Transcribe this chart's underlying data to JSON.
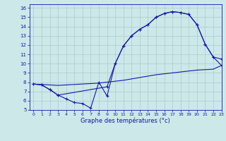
{
  "line1_x": [
    0,
    1,
    2,
    3,
    4,
    5,
    6,
    7,
    8,
    9,
    10,
    11,
    12,
    13,
    14,
    15,
    16,
    17,
    18,
    19,
    20,
    21,
    22,
    23
  ],
  "line1_y": [
    7.8,
    7.7,
    7.2,
    6.6,
    6.2,
    5.8,
    5.7,
    5.2,
    8.0,
    6.5,
    10.0,
    11.9,
    13.0,
    13.7,
    14.2,
    15.0,
    15.4,
    15.6,
    15.5,
    15.3,
    14.2,
    12.1,
    10.7,
    9.8
  ],
  "line2_x": [
    0,
    1,
    2,
    3,
    9,
    10,
    11,
    12,
    13,
    14,
    15,
    16,
    17,
    18,
    19,
    20,
    21,
    22,
    23
  ],
  "line2_y": [
    7.8,
    7.7,
    7.2,
    6.6,
    7.5,
    10.0,
    11.9,
    13.0,
    13.7,
    14.2,
    15.0,
    15.4,
    15.6,
    15.5,
    15.3,
    14.2,
    12.1,
    10.7,
    10.5
  ],
  "line3_x": [
    0,
    1,
    2,
    3,
    4,
    5,
    6,
    7,
    8,
    9,
    10,
    11,
    12,
    13,
    14,
    15,
    16,
    17,
    18,
    19,
    20,
    21,
    22,
    23
  ],
  "line3_y": [
    7.8,
    7.75,
    7.7,
    7.65,
    7.7,
    7.75,
    7.8,
    7.85,
    7.9,
    8.0,
    8.1,
    8.2,
    8.35,
    8.5,
    8.65,
    8.8,
    8.9,
    9.0,
    9.1,
    9.2,
    9.3,
    9.35,
    9.4,
    9.8
  ],
  "line_color": "#1616aa",
  "bg_color": "#cce8e8",
  "grid_color": "#aacccc",
  "xlabel": "Graphe des températures (°c)",
  "xlim": [
    -0.5,
    23
  ],
  "ylim": [
    5,
    16.4
  ],
  "yticks": [
    5,
    6,
    7,
    8,
    9,
    10,
    11,
    12,
    13,
    14,
    15,
    16
  ],
  "xticks": [
    0,
    1,
    2,
    3,
    4,
    5,
    6,
    7,
    8,
    9,
    10,
    11,
    12,
    13,
    14,
    15,
    16,
    17,
    18,
    19,
    20,
    21,
    22,
    23
  ]
}
